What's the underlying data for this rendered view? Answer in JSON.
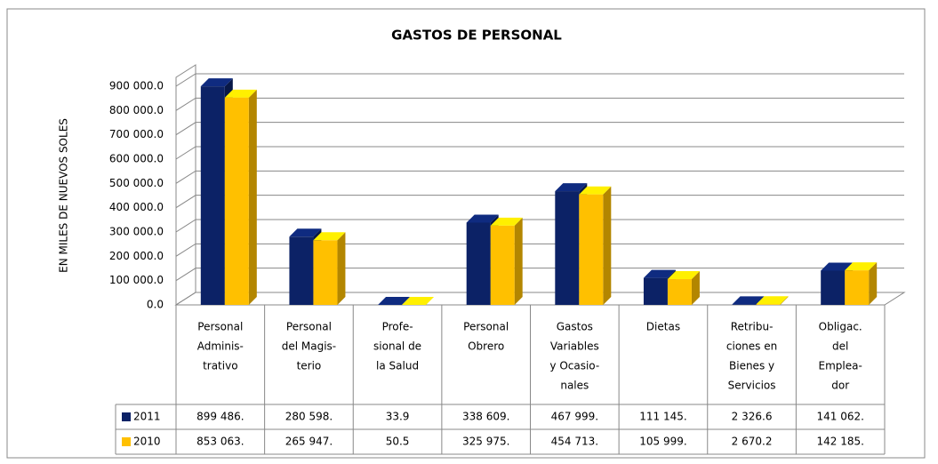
{
  "chart_data": {
    "type": "bar3d",
    "title": "GASTOS DE PERSONAL",
    "y_label": "EN MILES DE NUEVOS SOLES",
    "categories": [
      [
        "Personal",
        "Adminis-",
        "trativo"
      ],
      [
        "Personal",
        "del Magis-",
        "terio"
      ],
      [
        "Profe-",
        "sional de",
        "la Salud"
      ],
      [
        "Personal",
        "Obrero"
      ],
      [
        "Gastos",
        "Variables",
        "y Ocasio-",
        "nales"
      ],
      [
        "Dietas"
      ],
      [
        "Retribu-",
        "ciones en",
        "Bienes y",
        "Servicios"
      ],
      [
        "Obligac.",
        "del",
        "Emplea-",
        "dor"
      ]
    ],
    "series": [
      {
        "name": "2011",
        "color": "#0c2266",
        "values": [
          899486,
          280598,
          33.9,
          338609,
          467999,
          111145,
          2326.6,
          141062
        ],
        "value_labels": [
          "899 486.",
          "280 598.",
          "33.9",
          "338 609.",
          "467 999.",
          "111 145.",
          "2 326.6",
          "141 062."
        ]
      },
      {
        "name": "2010",
        "color": "#ffc000",
        "values": [
          853063,
          265947,
          50.5,
          325975,
          454713,
          105999,
          2670.2,
          142185
        ],
        "value_labels": [
          "853 063.",
          "265 947.",
          "50.5",
          "325 975.",
          "454 713.",
          "105 999.",
          "2 670.2",
          "142 185."
        ]
      }
    ],
    "ylim": [
      0,
      900000
    ],
    "yticks": [
      {
        "value": 0,
        "label": "0.0"
      },
      {
        "value": 100000,
        "label": "100 000.0"
      },
      {
        "value": 200000,
        "label": "200 000.0"
      },
      {
        "value": 300000,
        "label": "300 000.0"
      },
      {
        "value": 400000,
        "label": "400 000.0"
      },
      {
        "value": 500000,
        "label": "500 000.0"
      },
      {
        "value": 600000,
        "label": "600 000.0"
      },
      {
        "value": 700000,
        "label": "700 000.0"
      },
      {
        "value": 800000,
        "label": "800 000.0"
      },
      {
        "value": 900000,
        "label": "900 000.0"
      }
    ],
    "grid": true
  }
}
